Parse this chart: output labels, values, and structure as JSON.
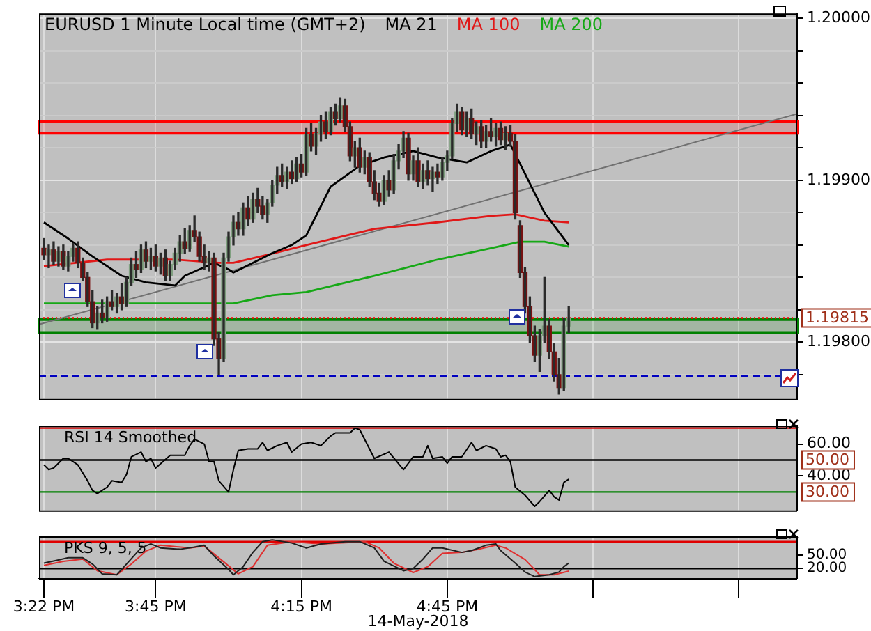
{
  "chart_data": [
    {
      "type": "candlestick",
      "title": "EURUSD 1 Minute Local time (GMT+2)",
      "legend": "top",
      "grid": true,
      "tick_labels": "y",
      "xlim": [
        15.35,
        17.95
      ],
      "xticks": [
        {
          "value": 15.3667,
          "label": null
        },
        {
          "value": 15.75,
          "label": null
        },
        {
          "value": 16.25,
          "label": null
        },
        {
          "value": 16.75,
          "label": null
        },
        {
          "value": 17.25,
          "label": null
        },
        {
          "value": 17.75,
          "label": null
        }
      ],
      "ylim": [
        1.19765,
        1.20003
      ],
      "yticks": [
        {
          "value": 1.1978,
          "label": null
        },
        {
          "value": 1.198,
          "label": "1.19800"
        },
        {
          "value": 1.1982,
          "label": null
        },
        {
          "value": 1.1984,
          "label": null
        },
        {
          "value": 1.1986,
          "label": null
        },
        {
          "value": 1.1988,
          "label": null
        },
        {
          "value": 1.199,
          "label": "1.19900"
        },
        {
          "value": 1.1992,
          "label": null
        },
        {
          "value": 1.1994,
          "label": null
        },
        {
          "value": 1.1996,
          "label": null
        },
        {
          "value": 1.1998,
          "label": null
        },
        {
          "value": 1.2,
          "label": "1.20000"
        }
      ],
      "x": [
        15.3667,
        15.3833,
        15.4,
        15.4167,
        15.4333,
        15.45,
        15.4667,
        15.4833,
        15.5,
        15.5167,
        15.5333,
        15.55,
        15.5667,
        15.5833,
        15.6,
        15.6167,
        15.6333,
        15.65,
        15.6667,
        15.6833,
        15.7,
        15.7167,
        15.7333,
        15.75,
        15.7667,
        15.7833,
        15.8,
        15.8167,
        15.8333,
        15.85,
        15.8667,
        15.8833,
        15.9,
        15.9167,
        15.9333,
        15.95,
        15.9667,
        15.9833,
        16,
        16.0167,
        16.0333,
        16.05,
        16.0667,
        16.0833,
        16.1,
        16.1167,
        16.1333,
        16.15,
        16.1667,
        16.1833,
        16.2,
        16.2167,
        16.2333,
        16.25,
        16.2667,
        16.2833,
        16.3,
        16.3167,
        16.3333,
        16.35,
        16.3667,
        16.3833,
        16.4,
        16.4167,
        16.4333,
        16.45,
        16.4667,
        16.4833,
        16.5,
        16.5167,
        16.5333,
        16.55,
        16.5667,
        16.5833,
        16.6,
        16.6167,
        16.6333,
        16.65,
        16.6667,
        16.6833,
        16.7,
        16.7167,
        16.7333,
        16.75,
        16.7667,
        16.7833,
        16.8,
        16.8167,
        16.8333,
        16.85,
        16.8667,
        16.8833,
        16.9,
        16.9167,
        16.9333,
        16.95,
        16.9667,
        16.9833,
        17,
        17.0167,
        17.0333,
        17.05,
        17.0667,
        17.0833,
        17.1,
        17.1167,
        17.1333,
        17.15,
        17.1667
      ],
      "ohlc": [
        [
          1.19858,
          1.19864,
          1.19851,
          1.19854
        ],
        [
          1.19854,
          1.1986,
          1.19846,
          1.19857
        ],
        [
          1.19857,
          1.19862,
          1.19848,
          1.1985
        ],
        [
          1.1985,
          1.19859,
          1.19847,
          1.19856
        ],
        [
          1.19856,
          1.1986,
          1.19845,
          1.19847
        ],
        [
          1.19847,
          1.19856,
          1.19844,
          1.19853
        ],
        [
          1.19853,
          1.19861,
          1.1985,
          1.19858
        ],
        [
          1.19858,
          1.19862,
          1.19846,
          1.19849
        ],
        [
          1.19849,
          1.19852,
          1.19838,
          1.1984
        ],
        [
          1.1984,
          1.19843,
          1.19822,
          1.19825
        ],
        [
          1.19825,
          1.19832,
          1.19809,
          1.19812
        ],
        [
          1.19812,
          1.19822,
          1.19808,
          1.19818
        ],
        [
          1.19818,
          1.19826,
          1.19812,
          1.19815
        ],
        [
          1.19815,
          1.19828,
          1.19813,
          1.19825
        ],
        [
          1.19825,
          1.19832,
          1.1982,
          1.19822
        ],
        [
          1.19822,
          1.1983,
          1.19818,
          1.19828
        ],
        [
          1.19828,
          1.19836,
          1.1982,
          1.19824
        ],
        [
          1.19824,
          1.1984,
          1.19822,
          1.19837
        ],
        [
          1.19837,
          1.19852,
          1.19835,
          1.19848
        ],
        [
          1.19848,
          1.19856,
          1.1984,
          1.19845
        ],
        [
          1.19845,
          1.1986,
          1.19843,
          1.19857
        ],
        [
          1.19857,
          1.19862,
          1.19846,
          1.1985
        ],
        [
          1.1985,
          1.19858,
          1.19845,
          1.19853
        ],
        [
          1.19853,
          1.1986,
          1.19844,
          1.19847
        ],
        [
          1.19847,
          1.19855,
          1.19842,
          1.19852
        ],
        [
          1.19852,
          1.19857,
          1.19838,
          1.19841
        ],
        [
          1.19841,
          1.1985,
          1.19838,
          1.19848
        ],
        [
          1.19848,
          1.19858,
          1.19845,
          1.19855
        ],
        [
          1.19855,
          1.19866,
          1.1985,
          1.19862
        ],
        [
          1.19862,
          1.1987,
          1.19855,
          1.19858
        ],
        [
          1.19858,
          1.19872,
          1.19856,
          1.19869
        ],
        [
          1.19869,
          1.19878,
          1.19862,
          1.19865
        ],
        [
          1.19865,
          1.19868,
          1.1985,
          1.19853
        ],
        [
          1.19853,
          1.1986,
          1.19845,
          1.19849
        ],
        [
          1.19849,
          1.19856,
          1.19844,
          1.19852
        ],
        [
          1.19852,
          1.19855,
          1.19798,
          1.19802
        ],
        [
          1.19802,
          1.19806,
          1.1978,
          1.1979
        ],
        [
          1.1979,
          1.19855,
          1.19788,
          1.19852
        ],
        [
          1.19852,
          1.19868,
          1.1985,
          1.19865
        ],
        [
          1.19865,
          1.19878,
          1.1986,
          1.19874
        ],
        [
          1.19874,
          1.1988,
          1.19866,
          1.1987
        ],
        [
          1.1987,
          1.19886,
          1.19866,
          1.19883
        ],
        [
          1.19883,
          1.1989,
          1.19872,
          1.19876
        ],
        [
          1.19876,
          1.19892,
          1.19874,
          1.19888
        ],
        [
          1.19888,
          1.19895,
          1.1988,
          1.19884
        ],
        [
          1.19884,
          1.1989,
          1.19876,
          1.19879
        ],
        [
          1.19879,
          1.19888,
          1.19874,
          1.19886
        ],
        [
          1.19886,
          1.199,
          1.19884,
          1.19897
        ],
        [
          1.19897,
          1.19908,
          1.19892,
          1.19903
        ],
        [
          1.19903,
          1.1991,
          1.19896,
          1.19899
        ],
        [
          1.19899,
          1.19908,
          1.19895,
          1.19905
        ],
        [
          1.19905,
          1.19912,
          1.19898,
          1.19901
        ],
        [
          1.19901,
          1.19914,
          1.19899,
          1.1991
        ],
        [
          1.1991,
          1.19916,
          1.19902,
          1.19905
        ],
        [
          1.19905,
          1.19932,
          1.19903,
          1.19928
        ],
        [
          1.19928,
          1.19935,
          1.19918,
          1.19921
        ],
        [
          1.19921,
          1.19932,
          1.19916,
          1.19929
        ],
        [
          1.19929,
          1.1994,
          1.19924,
          1.19936
        ],
        [
          1.19936,
          1.19942,
          1.19926,
          1.1993
        ],
        [
          1.1993,
          1.19945,
          1.19928,
          1.19942
        ],
        [
          1.19942,
          1.19947,
          1.19934,
          1.19938
        ],
        [
          1.19938,
          1.19951,
          1.19936,
          1.19946
        ],
        [
          1.19946,
          1.1995,
          1.1993,
          1.19933
        ],
        [
          1.19933,
          1.19936,
          1.19912,
          1.19915
        ],
        [
          1.19915,
          1.19924,
          1.19908,
          1.1992
        ],
        [
          1.1992,
          1.19926,
          1.19905,
          1.19908
        ],
        [
          1.19908,
          1.19918,
          1.19904,
          1.19914
        ],
        [
          1.19914,
          1.19917,
          1.19896,
          1.19899
        ],
        [
          1.19899,
          1.19906,
          1.19888,
          1.19892
        ],
        [
          1.19892,
          1.19898,
          1.19884,
          1.19887
        ],
        [
          1.19887,
          1.19903,
          1.19885,
          1.199
        ],
        [
          1.199,
          1.19906,
          1.1989,
          1.19894
        ],
        [
          1.19894,
          1.19916,
          1.19892,
          1.19912
        ],
        [
          1.19912,
          1.19922,
          1.19907,
          1.19918
        ],
        [
          1.19918,
          1.1993,
          1.19914,
          1.19926
        ],
        [
          1.19926,
          1.19929,
          1.199,
          1.19904
        ],
        [
          1.19904,
          1.19915,
          1.199,
          1.19912
        ],
        [
          1.19912,
          1.1992,
          1.19896,
          1.19899
        ],
        [
          1.19899,
          1.1991,
          1.19895,
          1.19906
        ],
        [
          1.19906,
          1.19912,
          1.19897,
          1.19901
        ],
        [
          1.19901,
          1.19908,
          1.19893,
          1.19905
        ],
        [
          1.19905,
          1.1991,
          1.19898,
          1.19902
        ],
        [
          1.19902,
          1.19914,
          1.199,
          1.19911
        ],
        [
          1.19911,
          1.19918,
          1.19906,
          1.19915
        ],
        [
          1.19915,
          1.19938,
          1.19913,
          1.19935
        ],
        [
          1.19935,
          1.19947,
          1.1993,
          1.19942
        ],
        [
          1.19942,
          1.19945,
          1.19928,
          1.19931
        ],
        [
          1.19931,
          1.19942,
          1.19927,
          1.19938
        ],
        [
          1.19938,
          1.19944,
          1.19926,
          1.19929
        ],
        [
          1.19929,
          1.19936,
          1.19922,
          1.19933
        ],
        [
          1.19933,
          1.19937,
          1.1992,
          1.19924
        ],
        [
          1.19924,
          1.19934,
          1.1992,
          1.1993
        ],
        [
          1.1993,
          1.19938,
          1.19924,
          1.19927
        ],
        [
          1.19927,
          1.19935,
          1.19921,
          1.19932
        ],
        [
          1.19932,
          1.19936,
          1.19922,
          1.19925
        ],
        [
          1.19925,
          1.19933,
          1.19919,
          1.19929
        ],
        [
          1.19929,
          1.19934,
          1.19921,
          1.19924
        ],
        [
          1.19924,
          1.19928,
          1.19876,
          1.1988
        ],
        [
          1.19872,
          1.19875,
          1.1984,
          1.19843
        ],
        [
          1.19843,
          1.19846,
          1.19818,
          1.19822
        ],
        [
          1.19822,
          1.19828,
          1.198,
          1.19804
        ],
        [
          1.19804,
          1.1981,
          1.19788,
          1.19792
        ],
        [
          1.19792,
          1.19808,
          1.19782,
          1.19804
        ],
        [
          1.19804,
          1.1984,
          1.198,
          1.1981
        ],
        [
          1.1981,
          1.19814,
          1.1979,
          1.19794
        ],
        [
          1.19794,
          1.19799,
          1.19776,
          1.1978
        ],
        [
          1.1978,
          1.1979,
          1.19768,
          1.19772
        ],
        [
          1.19772,
          1.19815,
          1.1977,
          1.1981
        ],
        [
          1.1981,
          1.19822,
          1.19806,
          1.19815
        ]
      ],
      "series": [
        {
          "name": "MA 21",
          "type": "line",
          "color": "#000000",
          "x": [
            15.3667,
            15.45,
            15.5333,
            15.6333,
            15.7167,
            15.8167,
            15.85,
            15.9,
            15.95,
            16,
            16.0167,
            16.0833,
            16.15,
            16.2167,
            16.2667,
            16.3167,
            16.35,
            16.45,
            16.5333,
            16.6333,
            16.7167,
            16.8167,
            16.9,
            16.9667,
            17.0167,
            17.0833,
            17.1667
          ],
          "values": [
            1.19874,
            1.19864,
            1.19853,
            1.19841,
            1.19837,
            1.19835,
            1.19841,
            1.19845,
            1.19849,
            1.19845,
            1.19843,
            1.19849,
            1.19855,
            1.1986,
            1.19866,
            1.19884,
            1.19896,
            1.19909,
            1.19914,
            1.19918,
            1.19914,
            1.19911,
            1.19918,
            1.19922,
            1.19904,
            1.1988,
            1.1986
          ]
        },
        {
          "name": "MA 100",
          "type": "line",
          "color": "#e01818",
          "x": [
            15.3667,
            15.5833,
            15.8167,
            15.9667,
            16.0167,
            16.1333,
            16.2667,
            16.5,
            16.7167,
            16.9,
            16.9833,
            17.0833,
            17.1667
          ],
          "values": [
            1.19847,
            1.19851,
            1.19851,
            1.19849,
            1.19849,
            1.19854,
            1.1986,
            1.1987,
            1.19874,
            1.19878,
            1.19879,
            1.19875,
            1.19874
          ]
        },
        {
          "name": "MA 200",
          "type": "line",
          "color": "#16a816",
          "x": [
            15.3667,
            15.5833,
            15.8167,
            16.0167,
            16.15,
            16.2667,
            16.5,
            16.7167,
            16.9,
            17,
            17.0833,
            17.1667
          ],
          "values": [
            1.19824,
            1.19824,
            1.19824,
            1.19824,
            1.19829,
            1.19831,
            1.19841,
            1.19851,
            1.19858,
            1.19862,
            1.19862,
            1.19859
          ]
        },
        {
          "type": "line",
          "color": "#707070",
          "x": [
            15.35,
            17.95
          ],
          "values": [
            1.19811,
            1.19941
          ]
        }
      ],
      "ref_lines": [
        {
          "axis": "y",
          "value": 1.19815,
          "label": "1.19815",
          "color": "#ff0000",
          "line_style": "dotted"
        },
        {
          "axis": "y",
          "value": 1.19779,
          "color": "#0000c0",
          "line_style": "dashed"
        }
      ],
      "bands": [
        {
          "axis": "y",
          "from": 1.19929,
          "to": 1.19936,
          "color": "#ff0000"
        },
        {
          "axis": "y",
          "from": 1.19806,
          "to": 1.19814,
          "color": "#008000"
        }
      ]
    },
    {
      "type": "line",
      "title": "RSI 14 Smoothed",
      "grid": "x",
      "tick_labels": "y",
      "xlim": [
        15.35,
        17.95
      ],
      "xticks": [
        {
          "value": 15.3667,
          "label": null
        },
        {
          "value": 15.75,
          "label": null
        },
        {
          "value": 16.25,
          "label": null
        },
        {
          "value": 16.75,
          "label": null
        },
        {
          "value": 17.25,
          "label": null
        },
        {
          "value": 17.75,
          "label": null
        }
      ],
      "ylim": [
        18.5,
        71.5
      ],
      "yticks": [
        {
          "value": 40,
          "label": "40.00"
        },
        {
          "value": 60,
          "label": "60.00"
        }
      ],
      "series": [
        {
          "color": "#000000",
          "x": [
            15.3667,
            15.3833,
            15.4,
            15.4333,
            15.45,
            15.4833,
            15.5167,
            15.5333,
            15.55,
            15.5833,
            15.6,
            15.6333,
            15.65,
            15.6667,
            15.7,
            15.7167,
            15.7333,
            15.75,
            15.8,
            15.8333,
            15.85,
            15.8667,
            15.8833,
            15.9167,
            15.9333,
            15.95,
            15.9667,
            16,
            16.0167,
            16.0333,
            16.0667,
            16.1,
            16.1167,
            16.1333,
            16.1667,
            16.2,
            16.2167,
            16.25,
            16.2833,
            16.3167,
            16.35,
            16.3667,
            16.4167,
            16.4333,
            16.45,
            16.5,
            16.55,
            16.6,
            16.6333,
            16.6667,
            16.6833,
            16.7,
            16.7333,
            16.75,
            16.7667,
            16.8,
            16.8333,
            16.85,
            16.8833,
            16.9167,
            16.9333,
            16.95,
            16.9667,
            16.9833,
            17.0167,
            17.05,
            17.0667,
            17.1,
            17.1167,
            17.1333,
            17.15,
            17.1667
          ],
          "values": [
            47,
            44,
            45,
            51,
            51,
            47,
            37,
            31,
            29,
            33,
            37,
            36,
            41,
            52,
            55,
            49,
            51,
            45,
            53,
            53,
            53,
            59,
            63,
            60,
            49,
            49,
            37,
            30,
            44,
            56,
            57,
            57,
            61,
            56,
            59,
            61,
            55,
            60,
            61,
            59,
            65,
            67,
            67,
            70,
            69,
            51,
            55,
            44,
            52,
            52,
            59,
            51,
            52,
            48,
            52,
            52,
            61,
            56,
            59,
            57,
            52,
            53,
            49,
            33,
            28,
            21,
            24,
            31,
            27,
            25,
            36,
            38
          ]
        }
      ],
      "ref_lines": [
        {
          "axis": "y",
          "value": 70,
          "color": "#e00000"
        },
        {
          "axis": "y",
          "value": 50,
          "label": "50.00",
          "color": "#000000"
        },
        {
          "axis": "y",
          "value": 30,
          "label": "30.00",
          "color": "#008000"
        }
      ]
    },
    {
      "type": "line",
      "title": "PKS 9, 5, 5",
      "xlabel": "14-May-2018",
      "grid": "x",
      "xlim": [
        15.35,
        17.95
      ],
      "xticks": [
        {
          "value": 15.3667,
          "label": "3:22 PM"
        },
        {
          "value": 15.75,
          "label": "3:45 PM"
        },
        {
          "value": 16.25,
          "label": "4:15 PM"
        },
        {
          "value": 16.75,
          "label": "4:45 PM"
        },
        {
          "value": 17.25,
          "label": null
        },
        {
          "value": 17.75,
          "label": null
        }
      ],
      "ylim": [
        -3,
        92
      ],
      "yticks": [
        {
          "value": 20,
          "label": "20.00"
        },
        {
          "value": 50,
          "label": "50.00"
        }
      ],
      "series": [
        {
          "color": "#202020",
          "x": [
            15.3667,
            15.4167,
            15.45,
            15.5,
            15.5333,
            15.5667,
            15.6167,
            15.65,
            15.7,
            15.7333,
            15.7667,
            15.8333,
            15.8833,
            15.9167,
            15.95,
            16,
            16.0167,
            16.05,
            16.0833,
            16.1167,
            16.15,
            16.2167,
            16.2667,
            16.3167,
            16.4,
            16.45,
            16.5,
            16.5333,
            16.6,
            16.6333,
            16.6667,
            16.7,
            16.7333,
            16.8,
            16.8333,
            16.8833,
            16.9167,
            16.9333,
            16.9833,
            17.0167,
            17.05,
            17.1,
            17.1333,
            17.15,
            17.1667
          ],
          "values": [
            32,
            39,
            44,
            44,
            30,
            8,
            6,
            30,
            66,
            75,
            66,
            63,
            68,
            72,
            48,
            18,
            6,
            24,
            56,
            80,
            84,
            77,
            66,
            75,
            80,
            80,
            66,
            36,
            15,
            20,
            41,
            66,
            66,
            56,
            60,
            72,
            75,
            60,
            32,
            12,
            2,
            6,
            12,
            24,
            32
          ]
        },
        {
          "color": "#e03030",
          "x": [
            15.3667,
            15.4333,
            15.5,
            15.55,
            15.6167,
            15.6667,
            15.7167,
            15.7667,
            15.8667,
            15.9167,
            15.9833,
            16.0333,
            16.0833,
            16.1333,
            16.2167,
            16.3167,
            16.4667,
            16.5167,
            16.5667,
            16.6333,
            16.6833,
            16.7333,
            16.8,
            16.85,
            16.9167,
            16.95,
            17.0167,
            17.0667,
            17.1167,
            17.1667
          ],
          "values": [
            27,
            36,
            41,
            15,
            6,
            30,
            59,
            72,
            66,
            70,
            35,
            8,
            24,
            72,
            80,
            75,
            80,
            66,
            32,
            11,
            24,
            54,
            56,
            62,
            72,
            66,
            40,
            6,
            6,
            14
          ]
        }
      ],
      "ref_lines": [
        {
          "axis": "y",
          "value": 80,
          "color": "#e00000"
        },
        {
          "axis": "y",
          "value": 20,
          "color": "#000000"
        }
      ]
    }
  ]
}
